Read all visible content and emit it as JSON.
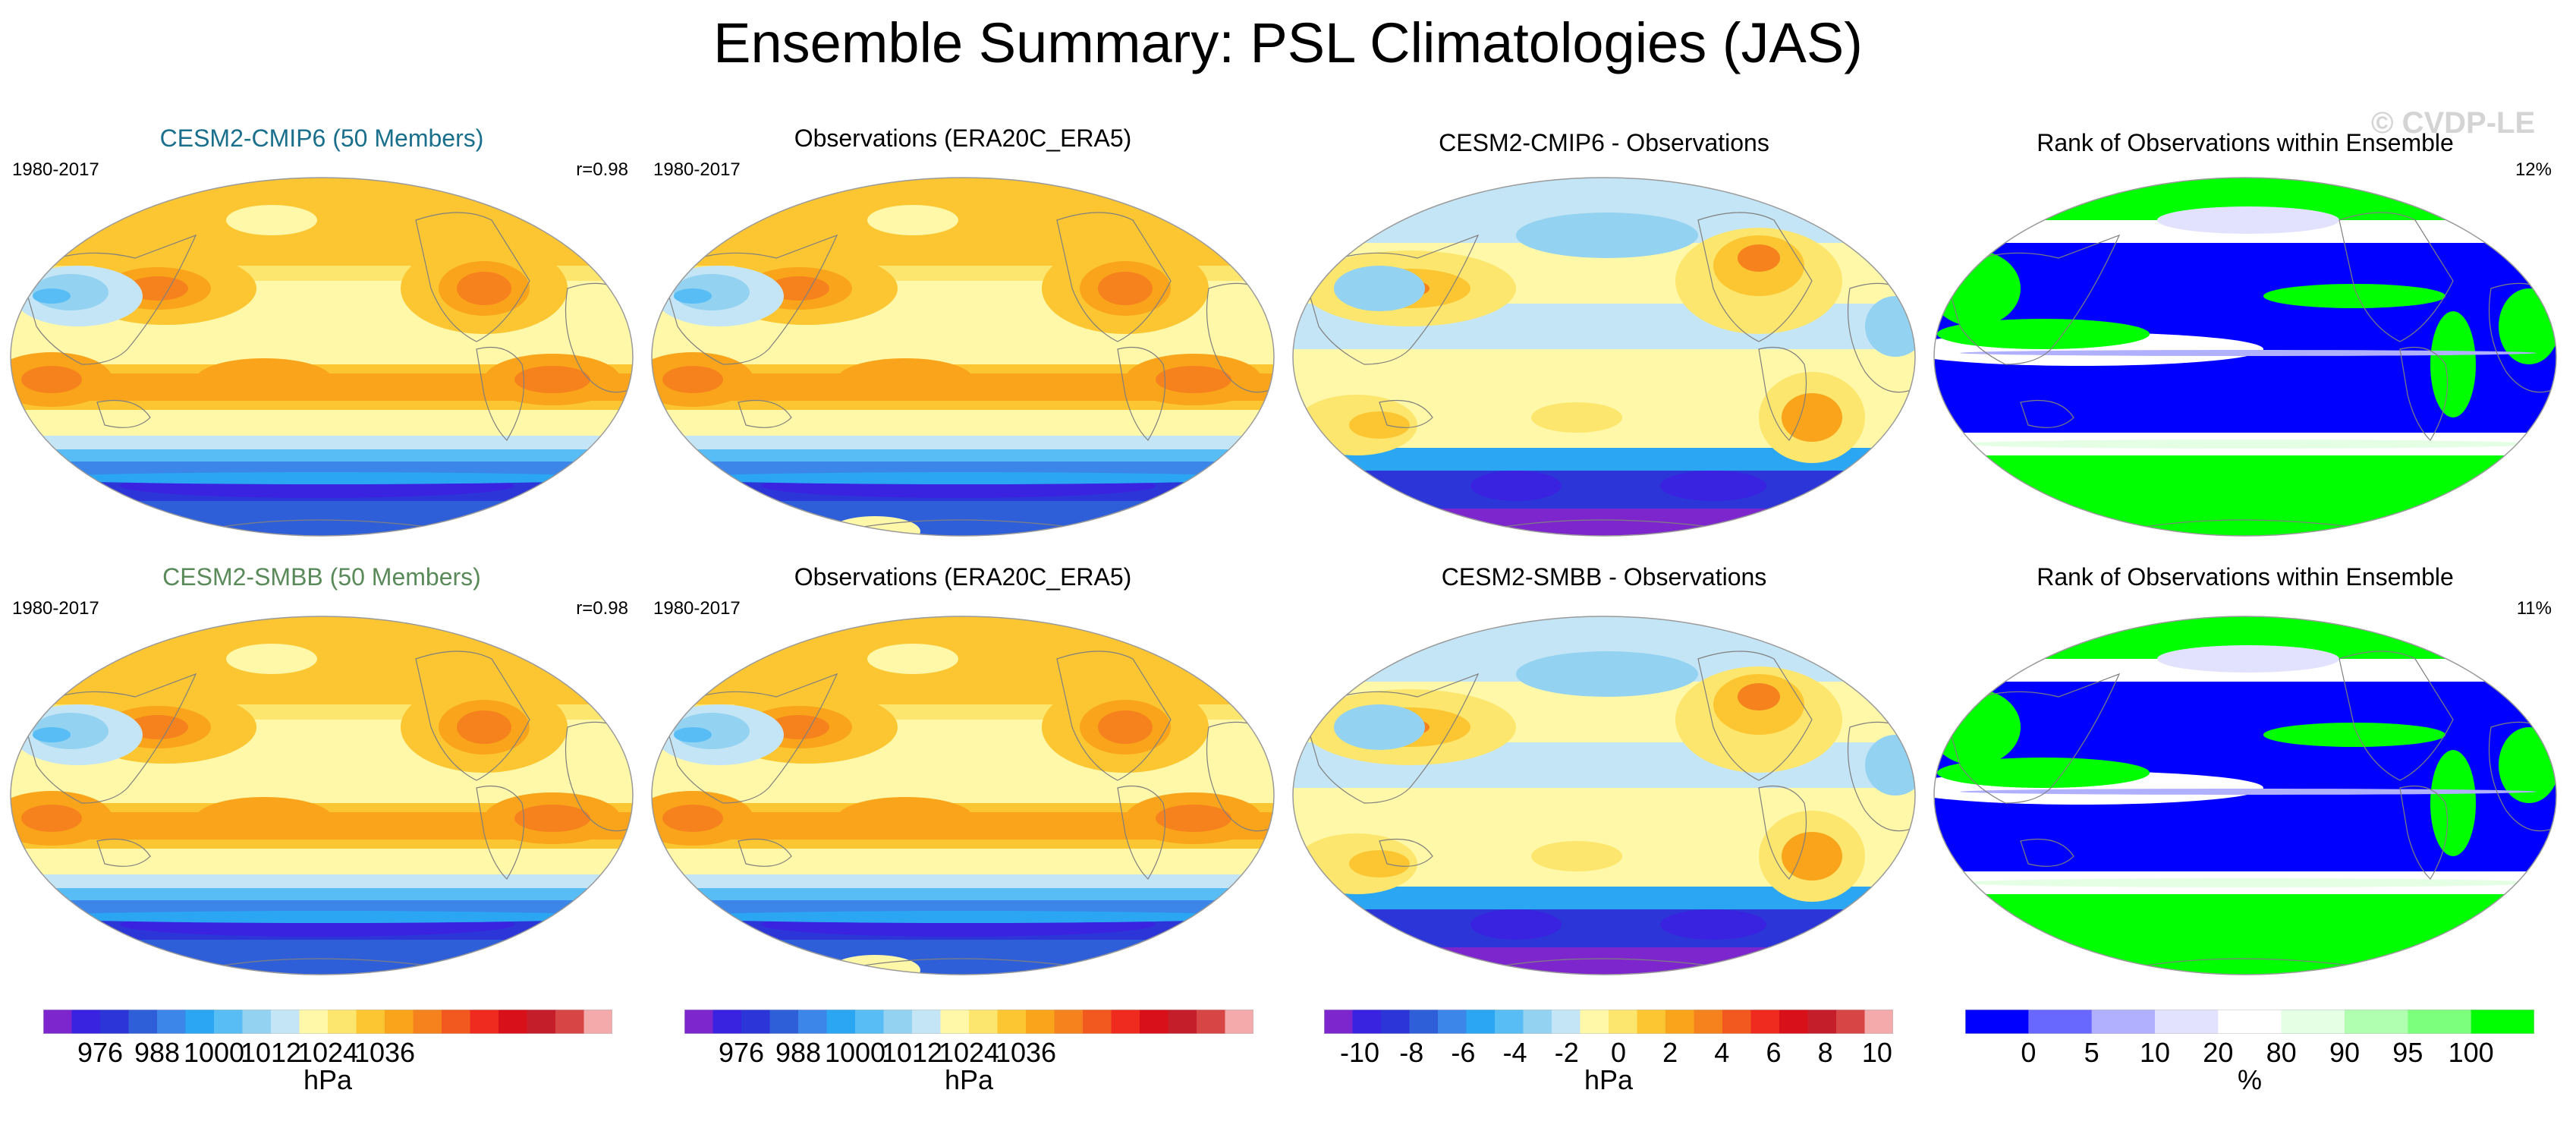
{
  "title": "Ensemble Summary: PSL Climatologies (JAS)",
  "watermark": "© CVDP-LE",
  "palettes": {
    "psl": [
      "#7d26cd",
      "#3a23e0",
      "#2c36d8",
      "#2f5ed9",
      "#3b86e8",
      "#2ba6f2",
      "#58bdf5",
      "#93d2f0",
      "#c4e5f5",
      "#fff8a8",
      "#fde66e",
      "#fbc632",
      "#f9a41a",
      "#f6821e",
      "#f2591e",
      "#ee2b1e",
      "#d8101a",
      "#c41e2a",
      "#d84545",
      "#f4aaaa"
    ],
    "rank": [
      "#0000ff",
      "#6868ff",
      "#b0b0ff",
      "#e2e2ff",
      "#ffffff",
      "#e4ffe4",
      "#b0ffb0",
      "#7cff7c",
      "#00ff00"
    ]
  },
  "panels": [
    {
      "id": "r1c1",
      "title": "CESM2-CMIP6 (50 Members)",
      "title_color": "#1a6f8c",
      "left": "1980-2017",
      "right": "r=0.98",
      "kind": "clim"
    },
    {
      "id": "r1c2",
      "title": "Observations (ERA20C_ERA5)",
      "title_color": "#000000",
      "left": "1980-2017",
      "right": "",
      "kind": "obs"
    },
    {
      "id": "r1c3",
      "title": "CESM2-CMIP6 - Observations",
      "title_color": "#000000",
      "left": "",
      "right": "",
      "kind": "diff"
    },
    {
      "id": "r1c4",
      "title": "Rank of Observations within Ensemble",
      "title_color": "#000000",
      "left": "",
      "right": "12%",
      "kind": "rank"
    },
    {
      "id": "r2c1",
      "title": "CESM2-SMBB (50 Members)",
      "title_color": "#5a8a5a",
      "left": "1980-2017",
      "right": "r=0.98",
      "kind": "clim"
    },
    {
      "id": "r2c2",
      "title": "Observations (ERA20C_ERA5)",
      "title_color": "#000000",
      "left": "1980-2017",
      "right": "",
      "kind": "obs"
    },
    {
      "id": "r2c3",
      "title": "CESM2-SMBB - Observations",
      "title_color": "#000000",
      "left": "",
      "right": "",
      "kind": "diff"
    },
    {
      "id": "r2c4",
      "title": "Rank of Observations within Ensemble",
      "title_color": "#000000",
      "left": "",
      "right": "11%",
      "kind": "rank"
    }
  ],
  "colorbars": [
    {
      "id": "cb1",
      "palette": "psl",
      "ticks": [
        "976",
        "988",
        "1000",
        "1012",
        "1024",
        "1036"
      ],
      "unit": "hPa"
    },
    {
      "id": "cb2",
      "palette": "psl",
      "ticks": [
        "976",
        "988",
        "1000",
        "1012",
        "1024",
        "1036"
      ],
      "unit": "hPa"
    },
    {
      "id": "cb3",
      "palette": "psl",
      "ticks": [
        "-10",
        "-8",
        "-6",
        "-4",
        "-2",
        "0",
        "2",
        "4",
        "6",
        "8",
        "10"
      ],
      "unit": "hPa"
    },
    {
      "id": "cb4",
      "palette": "rank",
      "ticks": [
        "0",
        "5",
        "10",
        "20",
        "80",
        "90",
        "95",
        "100"
      ],
      "unit": "%"
    }
  ],
  "chart_data": {
    "type": "heatmap",
    "title": "Ensemble Summary: PSL Climatologies (JAS)",
    "variable": "PSL",
    "season": "JAS",
    "period": "1980-2017",
    "maps": [
      {
        "title": "CESM2-CMIP6 (50 Members)",
        "pattern_correlation": 0.98,
        "units": "hPa"
      },
      {
        "title": "Observations (ERA20C_ERA5)",
        "units": "hPa"
      },
      {
        "title": "CESM2-CMIP6 - Observations",
        "units": "hPa"
      },
      {
        "title": "Rank of Observations within Ensemble",
        "value_shown": "12%",
        "units": "%"
      },
      {
        "title": "CESM2-SMBB (50 Members)",
        "pattern_correlation": 0.98,
        "units": "hPa"
      },
      {
        "title": "Observations (ERA20C_ERA5)",
        "units": "hPa"
      },
      {
        "title": "CESM2-SMBB - Observations",
        "units": "hPa"
      },
      {
        "title": "Rank of Observations within Ensemble",
        "value_shown": "11%",
        "units": "%"
      }
    ],
    "colorbar_ticks": {
      "climatology_hPa": [
        976,
        988,
        1000,
        1012,
        1024,
        1036
      ],
      "difference_hPa": [
        -10,
        -8,
        -6,
        -4,
        -2,
        0,
        2,
        4,
        6,
        8,
        10
      ],
      "rank_percent": [
        0,
        5,
        10,
        20,
        80,
        90,
        95,
        100
      ]
    }
  }
}
